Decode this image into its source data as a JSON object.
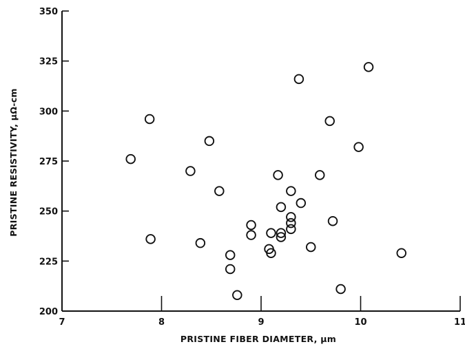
{
  "chart_data": {
    "type": "scatter",
    "title": "",
    "xlabel": "PRISTINE FIBER DIAMETER, μm",
    "ylabel": "PRISTINE RESISTIVITY, μΩ-cm",
    "xlim": [
      7,
      11
    ],
    "ylim": [
      200,
      350
    ],
    "x_ticks": [
      7,
      8,
      9,
      10,
      11
    ],
    "y_ticks": [
      200,
      225,
      250,
      275,
      300,
      325,
      350
    ],
    "x_tick_labels": [
      "7",
      "8",
      "9",
      "10",
      "11"
    ],
    "y_tick_labels": [
      "200",
      "225",
      "250",
      "275",
      "300",
      "325",
      "350"
    ],
    "grid": false,
    "marker": "open-circle",
    "marker_color": "#111111",
    "points": [
      {
        "x": 7.69,
        "y": 276
      },
      {
        "x": 7.88,
        "y": 296
      },
      {
        "x": 7.89,
        "y": 236
      },
      {
        "x": 8.29,
        "y": 270
      },
      {
        "x": 8.39,
        "y": 234
      },
      {
        "x": 8.48,
        "y": 285
      },
      {
        "x": 8.58,
        "y": 260
      },
      {
        "x": 8.69,
        "y": 228
      },
      {
        "x": 8.69,
        "y": 221
      },
      {
        "x": 8.76,
        "y": 208
      },
      {
        "x": 8.9,
        "y": 243
      },
      {
        "x": 8.9,
        "y": 238
      },
      {
        "x": 9.08,
        "y": 231
      },
      {
        "x": 9.1,
        "y": 229
      },
      {
        "x": 9.1,
        "y": 239
      },
      {
        "x": 9.17,
        "y": 268
      },
      {
        "x": 9.2,
        "y": 252
      },
      {
        "x": 9.2,
        "y": 239
      },
      {
        "x": 9.2,
        "y": 237
      },
      {
        "x": 9.3,
        "y": 260
      },
      {
        "x": 9.3,
        "y": 247
      },
      {
        "x": 9.3,
        "y": 244
      },
      {
        "x": 9.3,
        "y": 241
      },
      {
        "x": 9.38,
        "y": 316
      },
      {
        "x": 9.4,
        "y": 254
      },
      {
        "x": 9.5,
        "y": 232
      },
      {
        "x": 9.59,
        "y": 268
      },
      {
        "x": 9.69,
        "y": 295
      },
      {
        "x": 9.72,
        "y": 245
      },
      {
        "x": 9.8,
        "y": 211
      },
      {
        "x": 9.98,
        "y": 282
      },
      {
        "x": 10.08,
        "y": 322
      },
      {
        "x": 10.41,
        "y": 229
      }
    ]
  }
}
